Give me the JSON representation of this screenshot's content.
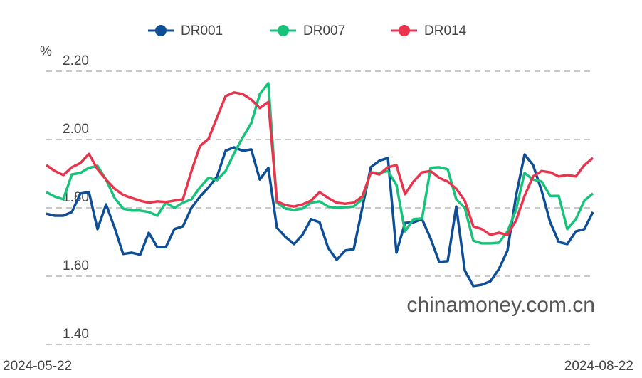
{
  "chart_data": {
    "type": "line",
    "y_unit": "%",
    "watermark": "chinamoney.com.cn",
    "categories": [
      "2024-05-22",
      null,
      null,
      null,
      null,
      null,
      null,
      null,
      null,
      null,
      null,
      null,
      null,
      null,
      null,
      null,
      null,
      null,
      null,
      null,
      null,
      null,
      null,
      null,
      null,
      null,
      null,
      null,
      null,
      null,
      null,
      null,
      null,
      null,
      null,
      null,
      null,
      null,
      null,
      null,
      null,
      null,
      null,
      null,
      null,
      null,
      null,
      null,
      null,
      null,
      null,
      null,
      null,
      null,
      null,
      null,
      null,
      null,
      null,
      null,
      null,
      null,
      null,
      null,
      "2024-08-22"
    ],
    "series": [
      {
        "name": "DR001",
        "color": "#0e4e96",
        "values": [
          1.783,
          1.777,
          1.777,
          1.788,
          1.842,
          1.846,
          1.738,
          1.81,
          1.742,
          1.665,
          1.669,
          1.663,
          1.727,
          1.685,
          1.685,
          1.738,
          1.746,
          1.8,
          1.833,
          1.86,
          1.892,
          1.967,
          1.977,
          1.967,
          1.971,
          1.883,
          1.917,
          1.742,
          1.715,
          1.694,
          1.721,
          1.767,
          1.758,
          1.683,
          1.648,
          1.675,
          1.679,
          1.8,
          1.919,
          1.938,
          1.946,
          1.669,
          1.756,
          1.758,
          1.767,
          1.71,
          1.642,
          1.644,
          1.804,
          1.617,
          1.571,
          1.575,
          1.585,
          1.621,
          1.675,
          1.835,
          1.956,
          1.925,
          1.85,
          1.758,
          1.7,
          1.694,
          1.731,
          1.738,
          1.788
        ]
      },
      {
        "name": "DR007",
        "color": "#17c27a",
        "values": [
          1.846,
          1.833,
          1.825,
          1.898,
          1.902,
          1.917,
          1.923,
          1.883,
          1.829,
          1.798,
          1.792,
          1.792,
          1.788,
          1.777,
          1.815,
          1.8,
          1.815,
          1.825,
          1.86,
          1.888,
          1.881,
          1.908,
          1.96,
          2.006,
          2.048,
          2.133,
          2.165,
          1.815,
          1.798,
          1.794,
          1.798,
          1.815,
          1.819,
          1.804,
          1.8,
          1.802,
          1.804,
          1.825,
          1.904,
          1.902,
          1.908,
          1.867,
          1.731,
          1.767,
          1.769,
          1.917,
          1.919,
          1.913,
          1.825,
          1.8,
          1.704,
          1.696,
          1.696,
          1.698,
          1.731,
          1.794,
          1.902,
          1.883,
          1.877,
          1.835,
          1.835,
          1.738,
          1.767,
          1.821,
          1.842
        ]
      },
      {
        "name": "DR014",
        "color": "#e8344d",
        "values": [
          1.925,
          1.908,
          1.896,
          1.919,
          1.931,
          1.958,
          1.913,
          1.883,
          1.856,
          1.838,
          1.829,
          1.821,
          1.815,
          1.819,
          1.817,
          1.821,
          1.825,
          1.908,
          1.981,
          2.002,
          2.065,
          2.127,
          2.138,
          2.133,
          2.117,
          2.092,
          2.11,
          1.819,
          1.808,
          1.804,
          1.81,
          1.821,
          1.846,
          1.829,
          1.815,
          1.812,
          1.815,
          1.833,
          1.904,
          1.898,
          1.919,
          1.925,
          1.84,
          1.877,
          1.904,
          1.908,
          1.888,
          1.877,
          1.856,
          1.821,
          1.746,
          1.738,
          1.721,
          1.727,
          1.721,
          1.763,
          1.835,
          1.892,
          1.908,
          1.904,
          1.892,
          1.896,
          1.892,
          1.925,
          1.946
        ]
      }
    ],
    "ylim": [
      1.4,
      2.2
    ],
    "yticks": [
      {
        "value": 1.4,
        "label": "1.40"
      },
      {
        "value": 1.6,
        "label": "1.60"
      },
      {
        "value": 1.8,
        "label": "1.80"
      },
      {
        "value": 2.0,
        "label": "2.00"
      },
      {
        "value": 2.2,
        "label": "2.20"
      }
    ],
    "grid": true,
    "legend": "top"
  }
}
